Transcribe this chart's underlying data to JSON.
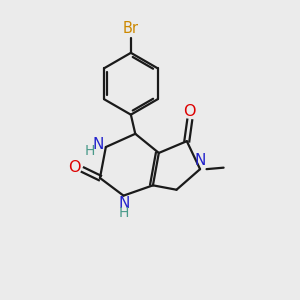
{
  "background_color": "#ebebeb",
  "bond_color": "#1a1a1a",
  "N_color": "#2222cc",
  "O_color": "#dd0000",
  "Br_color": "#cc8800",
  "H_color": "#4a9a8a",
  "figsize": [
    3.0,
    3.0
  ],
  "dpi": 100,
  "xlim": [
    0,
    10
  ],
  "ylim": [
    0,
    10
  ]
}
